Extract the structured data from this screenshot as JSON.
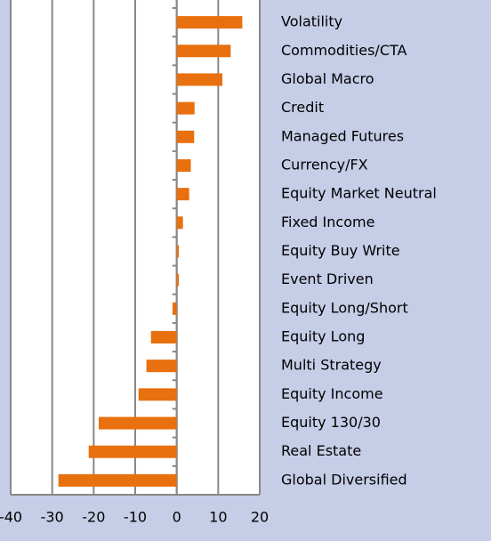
{
  "chart_data": {
    "type": "hbar",
    "categories": [
      "Volatility",
      "Commodities/CTA",
      "Global Macro",
      "Credit",
      "Managed Futures",
      "Currency/FX",
      "Equity Market Neutral",
      "Fixed Income",
      "Equity Buy Write",
      "Event Driven",
      "Equity Long/Short",
      "Equity Long",
      "Multi Strategy",
      "Equity Income",
      "Equity 130/30",
      "Real Estate",
      "Global Diversified"
    ],
    "values": [
      15.8,
      13,
      11,
      4.3,
      4.2,
      3.4,
      3,
      1.5,
      0.5,
      0.5,
      -1,
      -6.2,
      -7.3,
      -9.2,
      -18.8,
      -21.2,
      -28.5
    ],
    "color": "#e8700e",
    "xlim": [
      -40,
      20
    ],
    "xticks": [
      -40,
      -30,
      -20,
      -10,
      0,
      10,
      20
    ],
    "grid": true
  }
}
